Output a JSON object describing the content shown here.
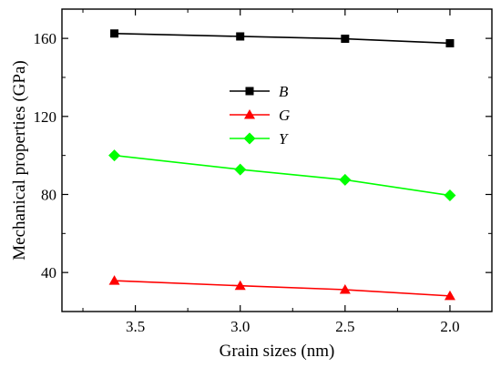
{
  "chart_data": {
    "type": "line",
    "title": "",
    "xlabel": "Grain sizes (nm)",
    "ylabel": "Mechanical properties (GPa)",
    "x_reversed": true,
    "xlim": [
      1.8,
      3.85
    ],
    "ylim": [
      20,
      175
    ],
    "x_ticks": [
      3.5,
      3.0,
      2.5,
      2.0
    ],
    "x_tick_labels": [
      "3.5",
      "3.0",
      "2.5",
      "2.0"
    ],
    "y_ticks": [
      40,
      80,
      120,
      160
    ],
    "y_tick_labels": [
      "40",
      "80",
      "120",
      "160"
    ],
    "grid": false,
    "legend_position": "upper-center",
    "x": [
      3.6,
      3.0,
      2.5,
      2.0
    ],
    "series": [
      {
        "name": "B",
        "values": [
          162.5,
          161.0,
          159.8,
          157.5
        ],
        "color": "#000000",
        "marker": "square"
      },
      {
        "name": "G",
        "values": [
          35.8,
          33.2,
          31.2,
          28.0
        ],
        "color": "#ff0000",
        "marker": "triangle"
      },
      {
        "name": "Y",
        "values": [
          100.0,
          92.8,
          87.5,
          79.5
        ],
        "color": "#00ff00",
        "marker": "diamond"
      }
    ]
  }
}
